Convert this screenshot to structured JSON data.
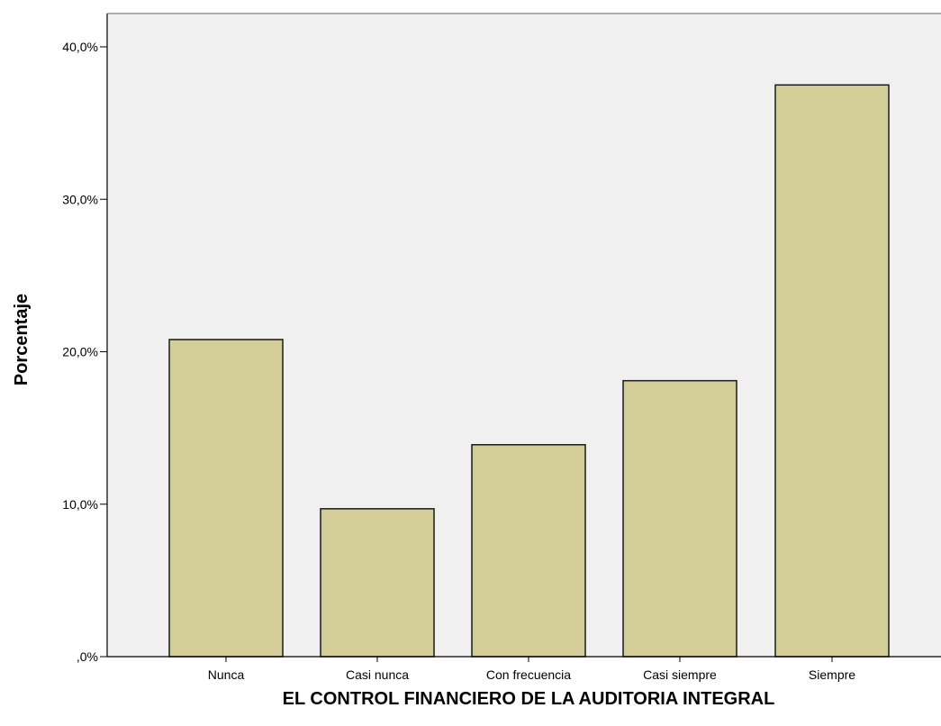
{
  "chart_data": {
    "type": "bar",
    "categories": [
      "Nunca",
      "Casi nunca",
      "Con frecuencia",
      "Casi siempre",
      "Siempre"
    ],
    "values": [
      20.8,
      9.7,
      13.9,
      18.1,
      37.5
    ],
    "xlabel": "EL CONTROL FINANCIERO DE LA AUDITORIA INTEGRAL",
    "ylabel": "Porcentaje",
    "ylim": [
      0,
      40
    ],
    "yticks": [
      0,
      10,
      20,
      30,
      40
    ],
    "ytick_labels": [
      ",0%",
      "10,0%",
      "20,0%",
      "30,0%",
      "40,0%"
    ],
    "grid": false,
    "colors": {
      "bar_fill": "#d3ce98",
      "bar_stroke": "#1a1a1a",
      "plot_background": "#f0f0f0",
      "axis": "#000000"
    }
  }
}
